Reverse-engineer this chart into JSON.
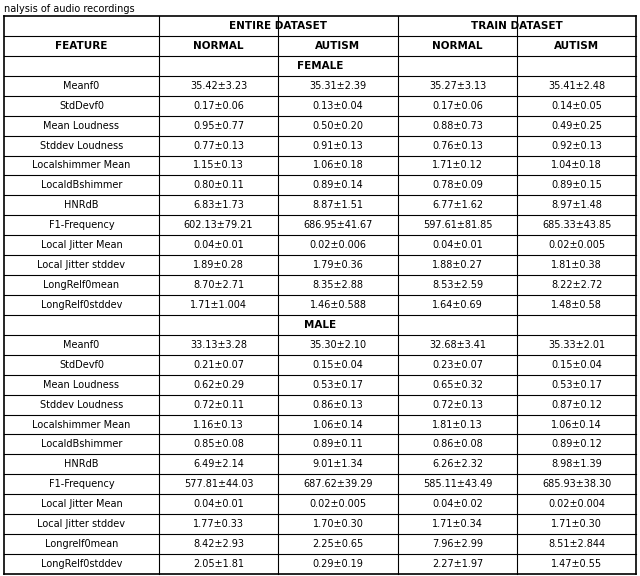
{
  "caption": "nalysis of audio recordings",
  "header_row2": [
    "FEATURE",
    "NORMAL",
    "AUTISM",
    "NORMAL",
    "AUTISM"
  ],
  "female_label": "FEMALE",
  "male_label": "MALE",
  "female_rows": [
    [
      "Meanf0",
      "35.42±3.23",
      "35.31±2.39",
      "35.27±3.13",
      "35.41±2.48"
    ],
    [
      "StdDevf0",
      "0.17±0.06",
      "0.13±0.04",
      "0.17±0.06",
      "0.14±0.05"
    ],
    [
      "Mean Loudness",
      "0.95±0.77",
      "0.50±0.20",
      "0.88±0.73",
      "0.49±0.25"
    ],
    [
      "Stddev Loudness",
      "0.77±0.13",
      "0.91±0.13",
      "0.76±0.13",
      "0.92±0.13"
    ],
    [
      "Localshimmer Mean",
      "1.15±0.13",
      "1.06±0.18",
      "1.71±0.12",
      "1.04±0.18"
    ],
    [
      "LocaldBshimmer",
      "0.80±0.11",
      "0.89±0.14",
      "0.78±0.09",
      "0.89±0.15"
    ],
    [
      "HNRdB",
      "6.83±1.73",
      "8.87±1.51",
      "6.77±1.62",
      "8.97±1.48"
    ],
    [
      "F1-Frequency",
      "602.13±79.21",
      "686.95±41.67",
      "597.61±81.85",
      "685.33±43.85"
    ],
    [
      "Local Jitter Mean",
      "0.04±0.01",
      "0.02±0.006",
      "0.04±0.01",
      "0.02±0.005"
    ],
    [
      "Local Jitter stddev",
      "1.89±0.28",
      "1.79±0.36",
      "1.88±0.27",
      "1.81±0.38"
    ],
    [
      "LongRelf0mean",
      "8.70±2.71",
      "8.35±2.88",
      "8.53±2.59",
      "8.22±2.72"
    ],
    [
      "LongRelf0stddev",
      "1.71±1.004",
      "1.46±0.588",
      "1.64±0.69",
      "1.48±0.58"
    ]
  ],
  "male_rows": [
    [
      "Meanf0",
      "33.13±3.28",
      "35.30±2.10",
      "32.68±3.41",
      "35.33±2.01"
    ],
    [
      "StdDevf0",
      "0.21±0.07",
      "0.15±0.04",
      "0.23±0.07",
      "0.15±0.04"
    ],
    [
      "Mean Loudness",
      "0.62±0.29",
      "0.53±0.17",
      "0.65±0.32",
      "0.53±0.17"
    ],
    [
      "Stddev Loudness",
      "0.72±0.11",
      "0.86±0.13",
      "0.72±0.13",
      "0.87±0.12"
    ],
    [
      "Localshimmer Mean",
      "1.16±0.13",
      "1.06±0.14",
      "1.81±0.13",
      "1.06±0.14"
    ],
    [
      "LocaldBshimmer",
      "0.85±0.08",
      "0.89±0.11",
      "0.86±0.08",
      "0.89±0.12"
    ],
    [
      "HNRdB",
      "6.49±2.14",
      "9.01±1.34",
      "6.26±2.32",
      "8.98±1.39"
    ],
    [
      "F1-Frequency",
      "577.81±44.03",
      "687.62±39.29",
      "585.11±43.49",
      "685.93±38.30"
    ],
    [
      "Local Jitter Mean",
      "0.04±0.01",
      "0.02±0.005",
      "0.04±0.02",
      "0.02±0.004"
    ],
    [
      "Local Jitter stddev",
      "1.77±0.33",
      "1.70±0.30",
      "1.71±0.34",
      "1.71±0.30"
    ],
    [
      "Longrelf0mean",
      "8.42±2.93",
      "2.25±0.65",
      "7.96±2.99",
      "8.51±2.844"
    ],
    [
      "LongRelf0stddev",
      "2.05±1.81",
      "0.29±0.19",
      "2.27±1.97",
      "1.47±0.55"
    ]
  ],
  "bg_color": "#ffffff",
  "line_color": "#000000",
  "text_color": "#000000",
  "font_size": 7.0,
  "header_font_size": 7.5,
  "caption_fontsize": 7.0
}
